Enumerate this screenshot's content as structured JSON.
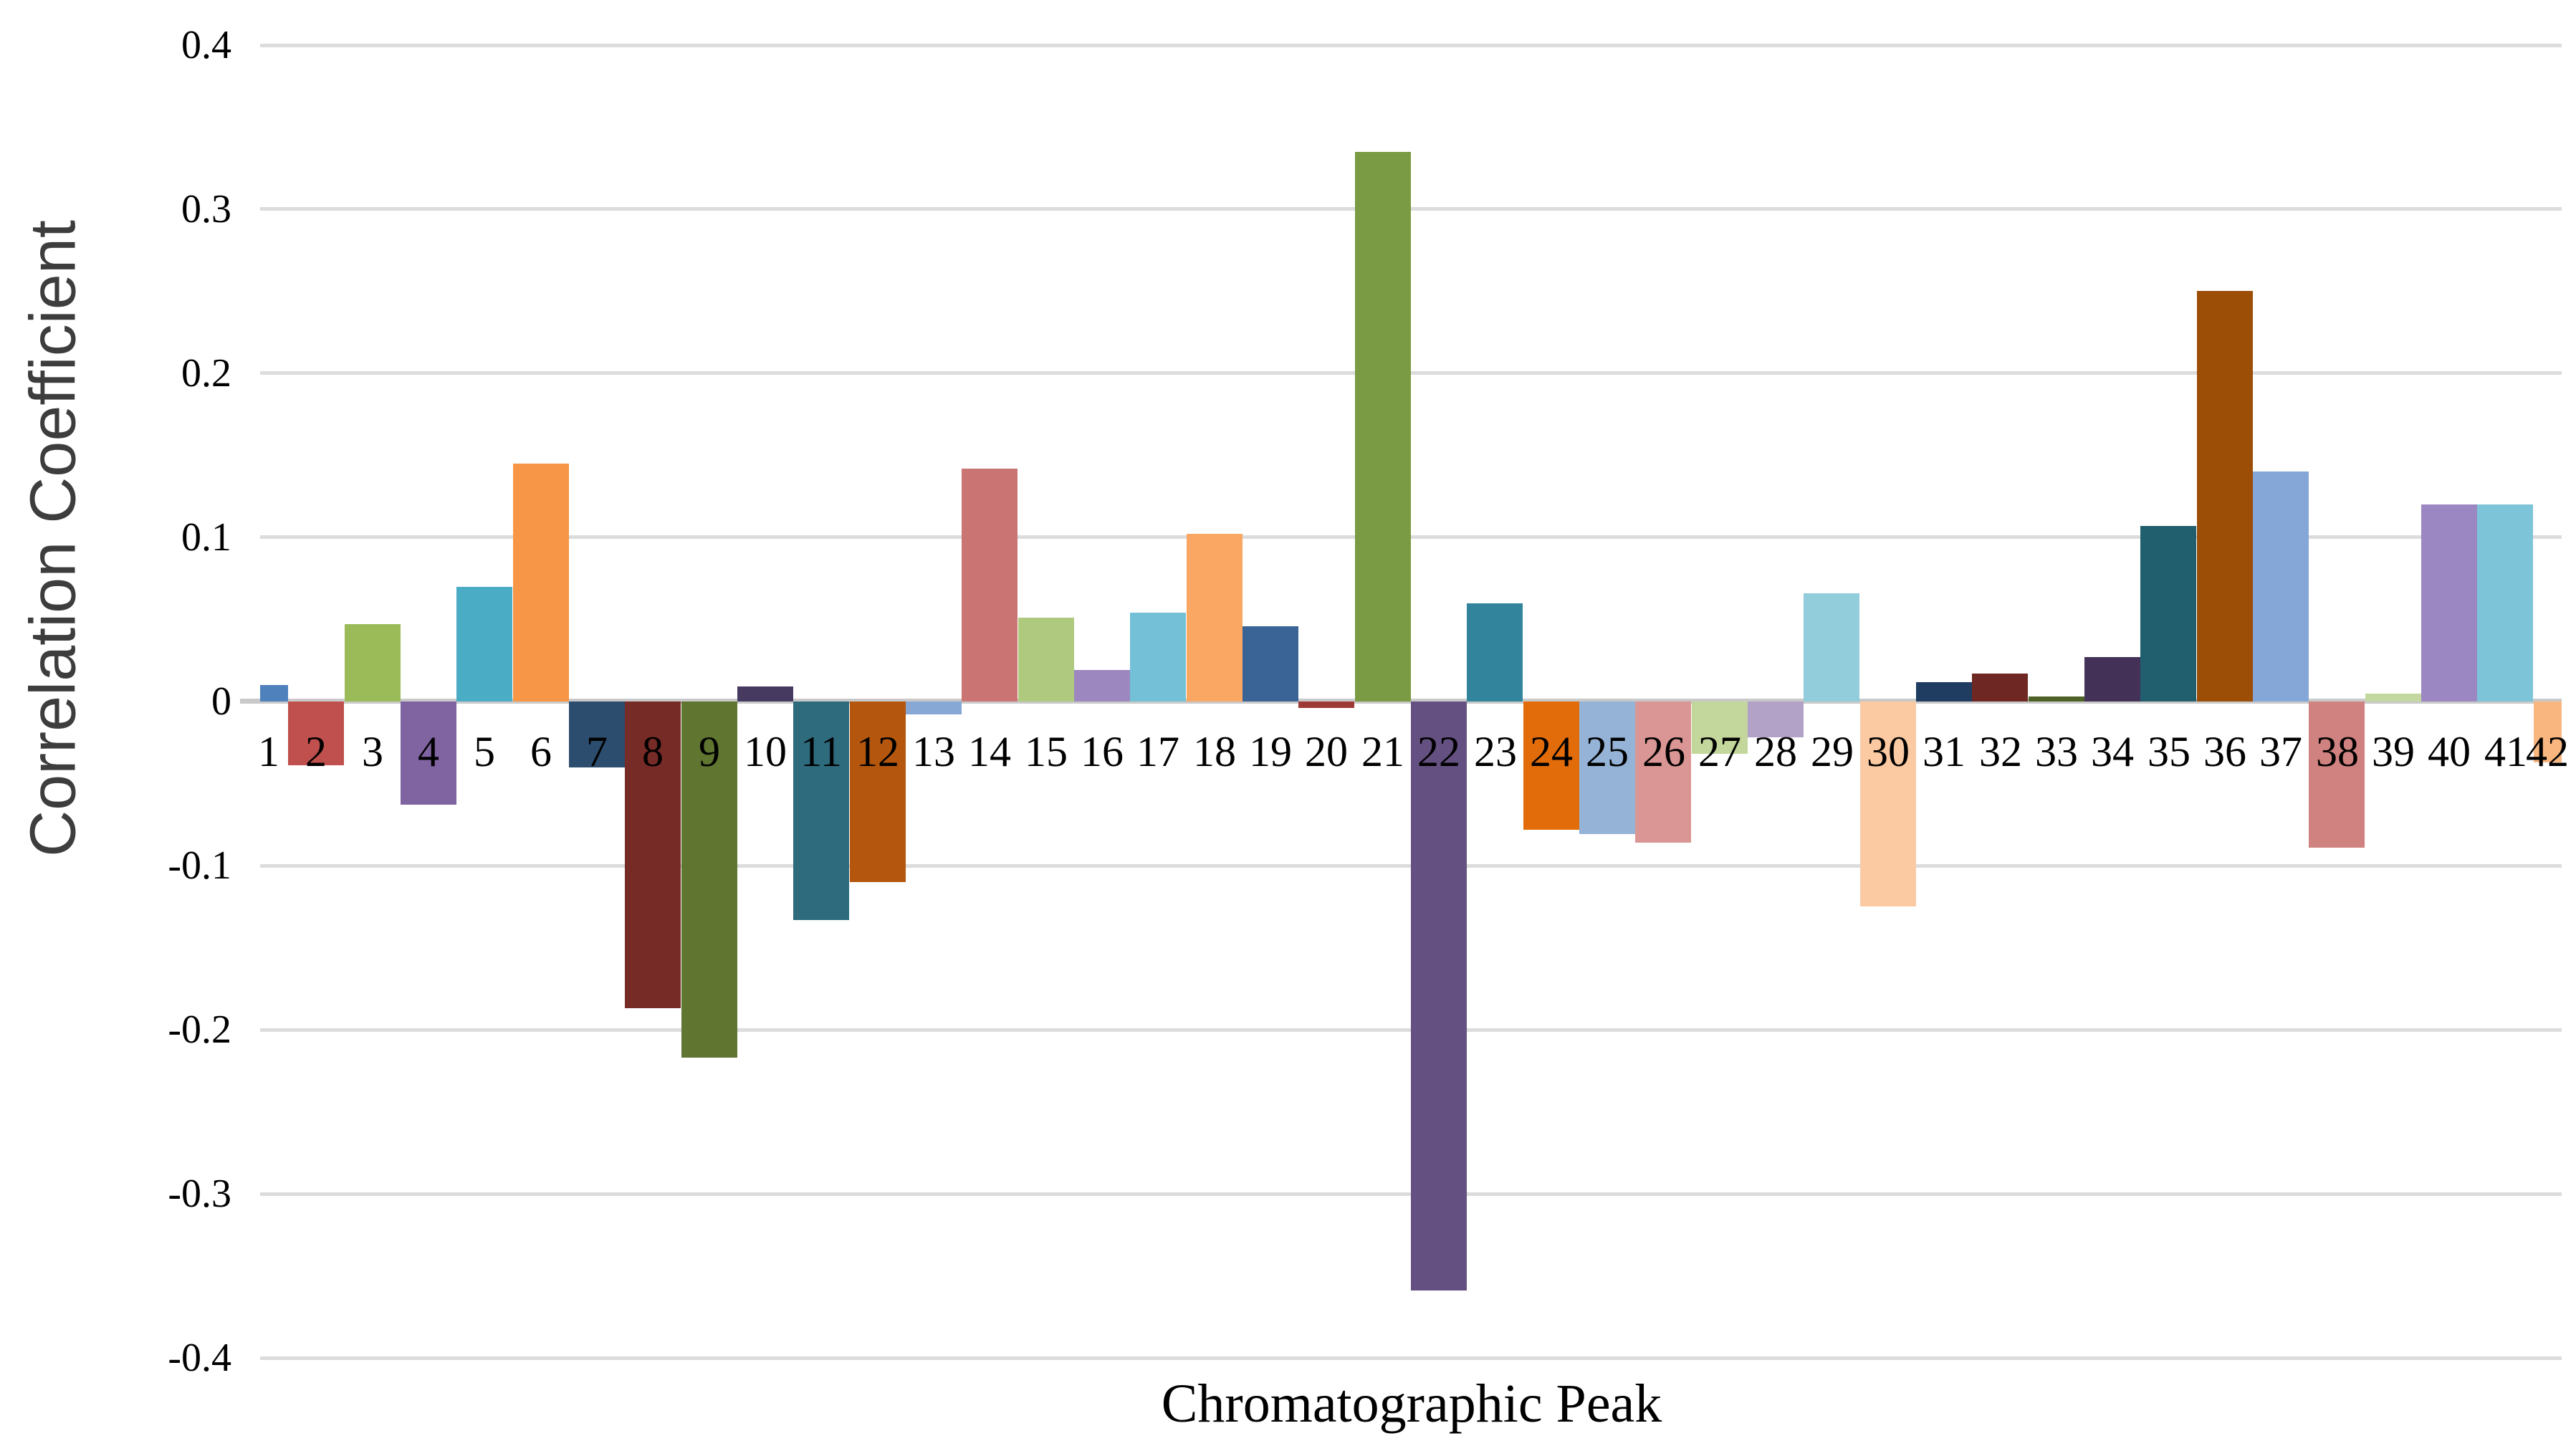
{
  "chart_data": {
    "type": "bar",
    "title": "",
    "xlabel": "Chromatographic Peak",
    "ylabel": "Correlation Coefficient",
    "categories": [
      "1",
      "2",
      "3",
      "4",
      "5",
      "6",
      "7",
      "8",
      "9",
      "10",
      "11",
      "12",
      "13",
      "14",
      "15",
      "16",
      "17",
      "18",
      "19",
      "20",
      "21",
      "22",
      "23",
      "24",
      "25",
      "26",
      "27",
      "28",
      "29",
      "30",
      "31",
      "32",
      "33",
      "34",
      "35",
      "36",
      "37",
      "38",
      "39",
      "40",
      "41",
      "42"
    ],
    "values": [
      0.01,
      -0.039,
      0.047,
      -0.063,
      0.07,
      0.145,
      -0.04,
      -0.187,
      -0.217,
      0.009,
      -0.133,
      -0.11,
      -0.008,
      0.142,
      0.051,
      0.019,
      0.054,
      0.102,
      0.046,
      -0.004,
      0.335,
      -0.359,
      0.06,
      -0.078,
      -0.081,
      -0.086,
      -0.032,
      -0.022,
      0.066,
      -0.125,
      0.012,
      0.017,
      0.003,
      0.027,
      0.107,
      0.25,
      0.14,
      -0.089,
      0.005,
      0.12,
      0.12,
      -0.037
    ],
    "bar_colors": [
      "#4F81BD",
      "#C0504D",
      "#9BBB59",
      "#8064A2",
      "#4BACC6",
      "#F79646",
      "#2C4D6E",
      "#772B27",
      "#5F7530",
      "#473A60",
      "#2E6B7D",
      "#B4560E",
      "#87A7D4",
      "#CA7573",
      "#AFC97E",
      "#9C88BE",
      "#74C1D7",
      "#F9A763",
      "#3A6496",
      "#9E3A36",
      "#7A9A43",
      "#645081",
      "#31849B",
      "#E36C0A",
      "#95B3D7",
      "#D99694",
      "#C3D69B",
      "#B3A2C7",
      "#92CDDC",
      "#FBCAA2",
      "#1F3C61",
      "#6E2722",
      "#4E6227",
      "#433157",
      "#215F6E",
      "#9C4D06",
      "#84A7D8",
      "#D08280",
      "#C4D79E",
      "#9B87C1",
      "#7EC4D9",
      "#FAB67F"
    ],
    "ylim": [
      -0.4,
      0.4
    ],
    "ytick_interval": 0.1,
    "ytick_labels": [
      "0.4",
      "0.3",
      "0.2",
      "0.1",
      "0",
      "-0.1",
      "-0.2",
      "-0.3",
      "-0.4"
    ],
    "grid": "horizontal",
    "gridline_color": "#DCDCDC",
    "zero_line_color": "#C9C9C9",
    "legend_position": "none",
    "bar_gap": "none",
    "first_last_bar": "half-width-clipped-at-plot-edges"
  }
}
